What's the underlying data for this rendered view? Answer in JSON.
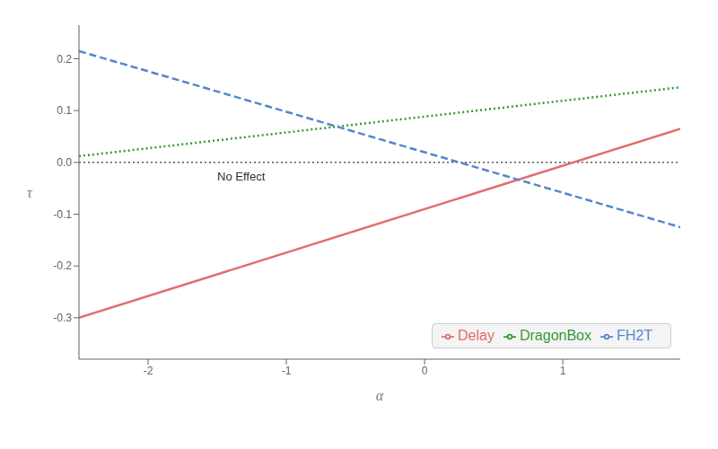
{
  "chart_data": {
    "type": "line",
    "xlabel": "α",
    "ylabel": "τ",
    "x": [
      -2.5,
      1.85
    ],
    "xlim": [
      -2.5,
      1.85
    ],
    "ylim": [
      -0.38,
      0.265
    ],
    "xticks": [
      -2,
      -1,
      0,
      1
    ],
    "yticks": [
      -0.3,
      -0.2,
      -0.1,
      {
        "value": 0.0,
        "label": "0.0"
      },
      0.1,
      0.2
    ],
    "grid": false,
    "legend": "lower right",
    "series": [
      {
        "name": "Delay",
        "color": "#E07070",
        "line_style": "solid",
        "values": [
          -0.3,
          0.065
        ]
      },
      {
        "name": "DragonBox",
        "color": "#3A9A3A",
        "line_style": "dotted",
        "values": [
          0.012,
          0.145
        ]
      },
      {
        "name": "FH2T",
        "color": "#5588CC",
        "line_style": "dashed",
        "values": [
          0.215,
          -0.125
        ]
      }
    ],
    "annotations": [
      {
        "text": "No Effect",
        "x": -1.5,
        "y": -0.018
      }
    ],
    "reference_line": {
      "y": 0,
      "color": "#000000",
      "line_style": "dotted"
    }
  }
}
